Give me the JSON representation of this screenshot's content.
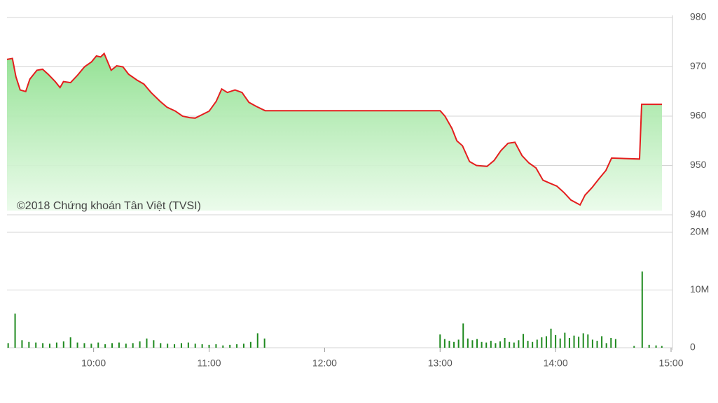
{
  "chart_data": [
    {
      "type": "area",
      "annotation": "©2018 Chứng khoán Tân Việt (TVSI)",
      "color": "#e41e1e",
      "x": [
        9.25,
        9.297,
        9.327,
        9.364,
        9.412,
        9.448,
        9.509,
        9.558,
        9.606,
        9.667,
        9.709,
        9.739,
        9.8,
        9.861,
        9.921,
        9.982,
        10.024,
        10.061,
        10.091,
        10.152,
        10.2,
        10.254,
        10.303,
        10.376,
        10.436,
        10.497,
        10.576,
        10.636,
        10.709,
        10.77,
        10.83,
        10.879,
        10.939,
        11.0,
        11.061,
        11.109,
        11.158,
        11.224,
        11.285,
        11.345,
        11.406,
        11.485,
        13.0,
        13.042,
        13.103,
        13.145,
        13.194,
        13.255,
        13.315,
        13.406,
        13.467,
        13.527,
        13.588,
        13.648,
        13.709,
        13.77,
        13.83,
        13.891,
        13.952,
        14.012,
        14.073,
        14.133,
        14.212,
        14.255,
        14.315,
        14.376,
        14.436,
        14.485,
        14.727,
        14.745,
        14.921
      ],
      "values": [
        971.5,
        971.7,
        968,
        965.3,
        965,
        967.5,
        969.3,
        969.5,
        968.5,
        967,
        965.8,
        967,
        966.8,
        968.3,
        970,
        971,
        972.2,
        972,
        972.7,
        969.3,
        970.2,
        970,
        968.5,
        967.3,
        966.5,
        964.8,
        963,
        961.8,
        961,
        960,
        959.7,
        959.6,
        960.3,
        961,
        963,
        965.5,
        964.8,
        965.3,
        964.8,
        962.8,
        962,
        961.1,
        961.1,
        960,
        957.5,
        955,
        954,
        950.8,
        950,
        949.8,
        951,
        953,
        954.5,
        954.7,
        952,
        950.5,
        949.5,
        947,
        946.4,
        945.8,
        944.5,
        943,
        942,
        944,
        945.5,
        947.3,
        949,
        951.5,
        951.3,
        962.4,
        962.4
      ],
      "xlim": [
        9.25,
        15
      ],
      "ylim": [
        940,
        980
      ],
      "yticks": [
        940,
        950,
        960,
        970,
        980
      ],
      "grid": true
    },
    {
      "type": "bar",
      "color": "#1f8a1f",
      "x": [
        9.26,
        9.32,
        9.38,
        9.44,
        9.5,
        9.56,
        9.62,
        9.68,
        9.74,
        9.8,
        9.86,
        9.92,
        9.98,
        10.04,
        10.1,
        10.16,
        10.22,
        10.28,
        10.34,
        10.4,
        10.46,
        10.52,
        10.58,
        10.64,
        10.7,
        10.76,
        10.82,
        10.88,
        10.94,
        11.0,
        11.06,
        11.12,
        11.18,
        11.24,
        11.3,
        11.36,
        11.42,
        11.48,
        13.0,
        13.04,
        13.08,
        13.12,
        13.16,
        13.2,
        13.24,
        13.28,
        13.32,
        13.36,
        13.4,
        13.44,
        13.48,
        13.52,
        13.56,
        13.6,
        13.64,
        13.68,
        13.72,
        13.76,
        13.8,
        13.84,
        13.88,
        13.92,
        13.96,
        14.0,
        14.04,
        14.08,
        14.12,
        14.16,
        14.2,
        14.24,
        14.28,
        14.32,
        14.36,
        14.4,
        14.44,
        14.48,
        14.52,
        14.68,
        14.75,
        14.81,
        14.87,
        14.92
      ],
      "values": [
        0.8,
        5.9,
        1.3,
        1.0,
        0.9,
        0.8,
        0.7,
        0.9,
        1.1,
        1.8,
        0.9,
        0.8,
        0.7,
        0.9,
        0.6,
        0.8,
        0.9,
        0.7,
        0.8,
        1.1,
        1.6,
        1.3,
        0.8,
        0.7,
        0.6,
        0.8,
        0.9,
        0.7,
        0.6,
        0.5,
        0.6,
        0.4,
        0.5,
        0.6,
        0.7,
        1.0,
        2.5,
        1.6,
        2.3,
        1.5,
        1.2,
        1.0,
        1.4,
        4.2,
        1.6,
        1.3,
        1.5,
        1.0,
        0.9,
        1.2,
        0.8,
        1.1,
        1.7,
        1.0,
        0.9,
        1.3,
        2.4,
        1.2,
        1.0,
        1.4,
        1.8,
        2.0,
        3.3,
        2.2,
        1.6,
        2.6,
        1.7,
        2.1,
        1.9,
        2.5,
        2.3,
        1.4,
        1.2,
        2.0,
        0.8,
        1.7,
        1.5,
        0.3,
        13.2,
        0.5,
        0.4,
        0.3
      ],
      "xlim": [
        9.25,
        15
      ],
      "ylim": [
        0,
        20
      ],
      "yticks": [
        0,
        {
          "value": 10,
          "label": "10M"
        },
        {
          "value": 20,
          "label": "20M"
        }
      ],
      "xticks": [
        {
          "value": 10,
          "label": "10:00"
        },
        {
          "value": 11,
          "label": "11:00"
        },
        {
          "value": 12,
          "label": "12:00"
        },
        {
          "value": 13,
          "label": "13:00"
        },
        {
          "value": 14,
          "label": "14:00"
        },
        {
          "value": 15,
          "label": "15:00"
        }
      ],
      "grid": true
    }
  ]
}
